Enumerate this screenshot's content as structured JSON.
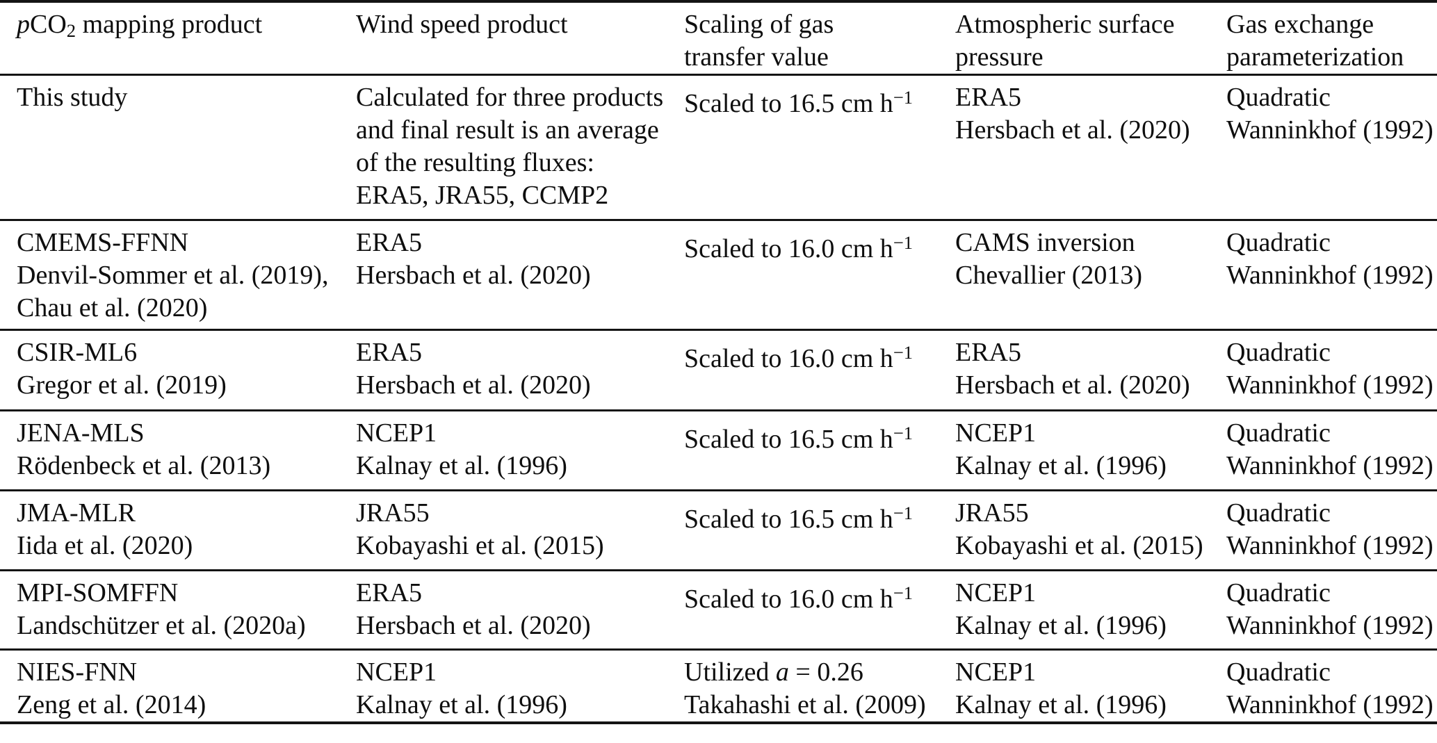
{
  "page": {
    "background": "#ffffff",
    "text_color": "#0e0e0e",
    "rule_color": "#141414"
  },
  "header": {
    "col1": {
      "p_italic": "p",
      "co": "CO",
      "subscript": "2",
      "rest": " mapping product"
    },
    "col2": "Wind speed product",
    "col3": [
      "Scaling of gas",
      "transfer value"
    ],
    "col4": [
      "Atmospheric surface",
      "pressure"
    ],
    "col5": [
      "Gas exchange",
      "parameterization"
    ]
  },
  "rows": [
    {
      "product": [
        "This study"
      ],
      "wind": [
        "Calculated for three products",
        "and final result is an average",
        "of the resulting fluxes:",
        "ERA5, JRA55, CCMP2"
      ],
      "scaling_prefix": "Scaled to 16.5 cm h",
      "scaling_sup": "−1",
      "pressure": [
        "ERA5",
        "Hersbach et al. (2020)"
      ],
      "gas": [
        "Quadratic",
        "Wanninkhof (1992)"
      ]
    },
    {
      "product": [
        "CMEMS-FFNN",
        "Denvil-Sommer et al. (2019),",
        "Chau et al. (2020)"
      ],
      "wind": [
        "ERA5",
        "Hersbach et al. (2020)"
      ],
      "scaling_prefix": "Scaled to 16.0 cm h",
      "scaling_sup": "−1",
      "pressure": [
        "CAMS inversion",
        "Chevallier (2013)"
      ],
      "gas": [
        "Quadratic",
        "Wanninkhof (1992)"
      ]
    },
    {
      "product": [
        "CSIR-ML6",
        "Gregor et al. (2019)"
      ],
      "wind": [
        "ERA5",
        "Hersbach et al. (2020)"
      ],
      "scaling_prefix": "Scaled to 16.0 cm h",
      "scaling_sup": "−1",
      "pressure": [
        "ERA5",
        "Hersbach et al. (2020)"
      ],
      "gas": [
        "Quadratic",
        "Wanninkhof (1992)"
      ]
    },
    {
      "product": [
        "JENA-MLS",
        "Rödenbeck et al. (2013)"
      ],
      "wind": [
        "NCEP1",
        "Kalnay et al. (1996)"
      ],
      "scaling_prefix": "Scaled to 16.5 cm h",
      "scaling_sup": "−1",
      "pressure": [
        "NCEP1",
        "Kalnay et al. (1996)"
      ],
      "gas": [
        "Quadratic",
        "Wanninkhof (1992)"
      ]
    },
    {
      "product": [
        "JMA-MLR",
        "Iida et al. (2020)"
      ],
      "wind": [
        "JRA55",
        "Kobayashi et al. (2015)"
      ],
      "scaling_prefix": "Scaled to 16.5 cm h",
      "scaling_sup": "−1",
      "pressure": [
        "JRA55",
        "Kobayashi et al. (2015)"
      ],
      "gas": [
        "Quadratic",
        "Wanninkhof (1992)"
      ]
    },
    {
      "product": [
        "MPI-SOMFFN",
        "Landschützer et al. (2020a)"
      ],
      "wind": [
        "ERA5",
        "Hersbach et al. (2020)"
      ],
      "scaling_prefix": "Scaled to 16.0 cm h",
      "scaling_sup": "−1",
      "pressure": [
        "NCEP1",
        "Kalnay et al. (1996)"
      ],
      "gas": [
        "Quadratic",
        "Wanninkhof (1992)"
      ]
    },
    {
      "product": [
        "NIES-FNN",
        "Zeng et al. (2014)"
      ],
      "wind": [
        "NCEP1",
        "Kalnay et al. (1996)"
      ],
      "scaling_pre": "Utilized ",
      "scaling_var": "a",
      "scaling_post": " = 0.26",
      "scaling_line2": "Takahashi et al. (2009)",
      "pressure": [
        "NCEP1",
        "Kalnay et al. (1996)"
      ],
      "gas": [
        "Quadratic",
        "Wanninkhof (1992)"
      ]
    }
  ]
}
